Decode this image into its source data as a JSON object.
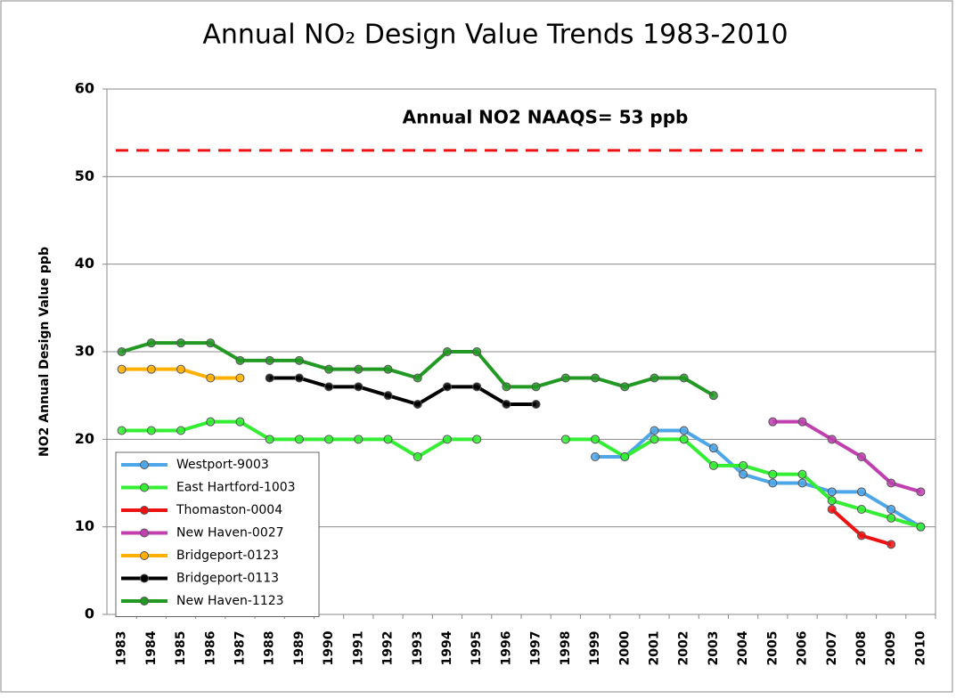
{
  "chart_data": {
    "type": "line",
    "title": "Annual NO₂ Design Value Trends 1983-2010",
    "y_label": "NO2 Annual Design Value ppb",
    "categories": [
      "1983",
      "1984",
      "1985",
      "1986",
      "1987",
      "1988",
      "1989",
      "1990",
      "1991",
      "1992",
      "1993",
      "1994",
      "1995",
      "1996",
      "1997",
      "1998",
      "1999",
      "2000",
      "2001",
      "2002",
      "2003",
      "2004",
      "2005",
      "2006",
      "2007",
      "2008",
      "2009",
      "2010"
    ],
    "ylim": [
      0,
      60
    ],
    "yticks": [
      0,
      10,
      20,
      30,
      40,
      50,
      60
    ],
    "grid": true,
    "legend": "lower-left",
    "reference_line": {
      "value": 53,
      "color": "#ee1111",
      "label": "Annual NO2 NAAQS= 53 ppb"
    },
    "series": [
      {
        "name": "Westport-9003",
        "color": "#4da6e8",
        "values": [
          null,
          null,
          null,
          null,
          null,
          null,
          null,
          null,
          null,
          null,
          null,
          null,
          null,
          null,
          null,
          null,
          18,
          18,
          21,
          21,
          19,
          16,
          15,
          15,
          14,
          14,
          12,
          10
        ]
      },
      {
        "name": "East Hartford-1003",
        "color": "#33ee33",
        "values": [
          21,
          21,
          21,
          22,
          22,
          20,
          20,
          20,
          20,
          20,
          18,
          20,
          20,
          null,
          null,
          20,
          20,
          18,
          20,
          20,
          17,
          17,
          16,
          16,
          13,
          12,
          11,
          10
        ]
      },
      {
        "name": "Thomaston-0004",
        "color": "#ee1111",
        "values": [
          null,
          null,
          null,
          null,
          null,
          null,
          null,
          null,
          null,
          null,
          null,
          null,
          null,
          null,
          null,
          null,
          null,
          null,
          null,
          null,
          null,
          null,
          null,
          null,
          12,
          9,
          8,
          null
        ]
      },
      {
        "name": "New Haven-0027",
        "color": "#c040b0",
        "values": [
          null,
          null,
          null,
          null,
          null,
          null,
          null,
          null,
          null,
          null,
          null,
          null,
          null,
          null,
          null,
          null,
          null,
          null,
          null,
          null,
          null,
          null,
          22,
          22,
          20,
          18,
          15,
          14
        ]
      },
      {
        "name": "Bridgeport-0123",
        "color": "#ffb000",
        "values": [
          28,
          28,
          28,
          27,
          27,
          null,
          null,
          null,
          null,
          null,
          null,
          null,
          null,
          null,
          null,
          null,
          null,
          null,
          null,
          null,
          null,
          null,
          null,
          null,
          null,
          null,
          null,
          null
        ]
      },
      {
        "name": "Bridgeport-0113",
        "color": "#000000",
        "values": [
          null,
          null,
          null,
          null,
          null,
          27,
          27,
          26,
          26,
          25,
          24,
          26,
          26,
          24,
          24,
          null,
          null,
          null,
          null,
          null,
          null,
          null,
          null,
          null,
          null,
          null,
          null,
          null
        ]
      },
      {
        "name": "New Haven-1123",
        "color": "#229922",
        "values": [
          30,
          31,
          31,
          31,
          29,
          29,
          29,
          28,
          28,
          28,
          27,
          30,
          30,
          26,
          26,
          27,
          27,
          26,
          27,
          27,
          25,
          null,
          null,
          null,
          null,
          null,
          null,
          null
        ]
      }
    ]
  }
}
